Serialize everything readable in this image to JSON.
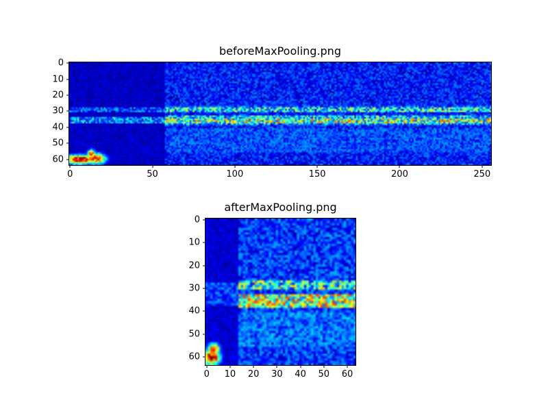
{
  "figure": {
    "background_color": "#ffffff",
    "text_color": "#000000",
    "frame_color": "#000000"
  },
  "chart_data": [
    {
      "type": "heatmap",
      "title": "beforeMaxPooling.png",
      "colormap": "jet",
      "x_range": [
        0,
        255
      ],
      "y_range": [
        0,
        63
      ],
      "y_inverted": true,
      "grid": false,
      "legend": null,
      "x_ticks": {
        "values": [
          0,
          50,
          100,
          150,
          200,
          250
        ],
        "labels": [
          "0",
          "50",
          "100",
          "150",
          "200",
          "250"
        ]
      },
      "y_ticks": {
        "values": [
          0,
          10,
          20,
          30,
          40,
          50,
          60
        ],
        "labels": [
          "0",
          "10",
          "20",
          "30",
          "40",
          "50",
          "60"
        ]
      },
      "image": {
        "rows": 64,
        "cols": 256,
        "seed": 7,
        "background": {
          "min": 0.03,
          "max": 0.26
        },
        "regions": [
          {
            "name": "smooth-dark-left-block",
            "rows": [
              0,
              63
            ],
            "cols": [
              0,
              57
            ],
            "min": 0.02,
            "max": 0.11,
            "mode": "set"
          },
          {
            "name": "upper-band-left-faint",
            "rows": [
              28,
              30
            ],
            "cols": [
              0,
              57
            ],
            "min": 0.06,
            "max": 0.35,
            "mode": "max"
          },
          {
            "name": "main-band-left-faint",
            "rows": [
              34,
              37
            ],
            "cols": [
              0,
              57
            ],
            "min": 0.08,
            "max": 0.45,
            "mode": "max"
          },
          {
            "name": "upper-band-edge",
            "rows": [
              27,
              27
            ],
            "cols": [
              58,
              255
            ],
            "min": 0.04,
            "max": 0.35,
            "mode": "max"
          },
          {
            "name": "upper-band-core",
            "rows": [
              28,
              30
            ],
            "cols": [
              58,
              255
            ],
            "min": 0.1,
            "max": 0.62,
            "mode": "max"
          },
          {
            "name": "main-band-top",
            "rows": [
              33,
              34
            ],
            "cols": [
              58,
              255
            ],
            "min": 0.1,
            "max": 0.55,
            "mode": "max"
          },
          {
            "name": "main-band-core",
            "rows": [
              35,
              37
            ],
            "cols": [
              58,
              255
            ],
            "min": 0.18,
            "max": 0.8,
            "mode": "max"
          },
          {
            "name": "main-band-edge",
            "rows": [
              38,
              38
            ],
            "cols": [
              58,
              255
            ],
            "min": 0.06,
            "max": 0.45,
            "mode": "max"
          },
          {
            "name": "lower-speckle",
            "rows": [
              41,
              55
            ],
            "cols": [
              58,
              255
            ],
            "min": 0.03,
            "max": 0.3,
            "mode": "max"
          }
        ],
        "gaussians": [
          {
            "name": "hotspot-streak",
            "row": 60,
            "col": 6,
            "sigma_row": 2.0,
            "sigma_col": 7.0,
            "amp": 1.0
          },
          {
            "name": "hotspot-mid",
            "row": 59.5,
            "col": 16,
            "sigma_row": 2.3,
            "sigma_col": 4.0,
            "amp": 0.92
          },
          {
            "name": "hotspot-upper-dot",
            "row": 56.5,
            "col": 13,
            "sigma_row": 1.8,
            "sigma_col": 1.8,
            "amp": 0.85
          }
        ]
      }
    },
    {
      "type": "heatmap",
      "title": "afterMaxPooling.png",
      "colormap": "jet",
      "x_range": [
        0,
        63
      ],
      "y_range": [
        0,
        63
      ],
      "y_inverted": true,
      "grid": false,
      "legend": null,
      "x_ticks": {
        "values": [
          0,
          10,
          20,
          30,
          40,
          50,
          60
        ],
        "labels": [
          "0",
          "10",
          "20",
          "30",
          "40",
          "50",
          "60"
        ]
      },
      "y_ticks": {
        "values": [
          0,
          10,
          20,
          30,
          40,
          50,
          60
        ],
        "labels": [
          "0",
          "10",
          "20",
          "30",
          "40",
          "50",
          "60"
        ]
      },
      "image": {
        "rows": 64,
        "cols": 64,
        "seed": 11,
        "background": {
          "min": 0.05,
          "max": 0.3
        },
        "regions": [
          {
            "name": "smooth-dark-left-block",
            "rows": [
              0,
              63
            ],
            "cols": [
              0,
              13
            ],
            "min": 0.03,
            "max": 0.13,
            "mode": "set"
          },
          {
            "name": "bands-left-faint",
            "rows": [
              28,
              37
            ],
            "cols": [
              0,
              13
            ],
            "min": 0.06,
            "max": 0.3,
            "mode": "max"
          },
          {
            "name": "upper-band-core",
            "rows": [
              27,
              30
            ],
            "cols": [
              14,
              63
            ],
            "min": 0.12,
            "max": 0.7,
            "mode": "max"
          },
          {
            "name": "main-band-core",
            "rows": [
              33,
              38
            ],
            "cols": [
              14,
              63
            ],
            "min": 0.2,
            "max": 0.85,
            "mode": "max"
          },
          {
            "name": "lower-speckle",
            "rows": [
              41,
              55
            ],
            "cols": [
              14,
              63
            ],
            "min": 0.05,
            "max": 0.34,
            "mode": "max"
          }
        ],
        "gaussians": [
          {
            "name": "hotspot-core",
            "row": 60,
            "col": 2,
            "sigma_row": 2.4,
            "sigma_col": 2.6,
            "amp": 1.0
          },
          {
            "name": "hotspot-upper",
            "row": 56.5,
            "col": 3,
            "sigma_row": 1.8,
            "sigma_col": 1.8,
            "amp": 0.85
          }
        ]
      }
    }
  ]
}
